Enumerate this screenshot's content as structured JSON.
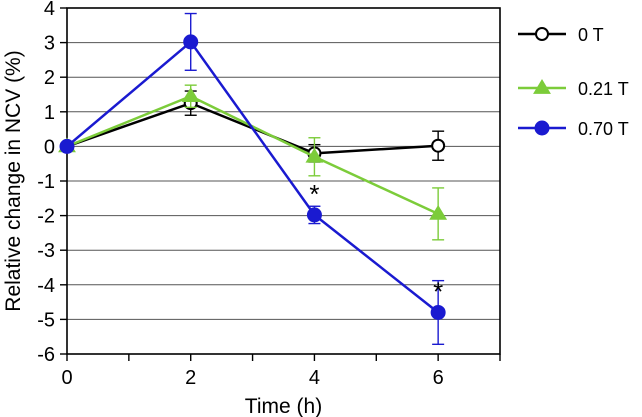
{
  "chart_data": {
    "type": "line",
    "title": "",
    "xlabel": "Time (h)",
    "ylabel": "Relative change in NCV (%)",
    "xlim": [
      0,
      7
    ],
    "ylim": [
      -6,
      4
    ],
    "x_ticks": [
      0,
      2,
      4,
      6
    ],
    "x_tick_labels": [
      "0",
      "2",
      "4",
      "6"
    ],
    "y_ticks": [
      4,
      3,
      2,
      1,
      0,
      -1,
      -2,
      -3,
      -4,
      -5,
      -6
    ],
    "y_tick_labels": [
      "4",
      "3",
      "2",
      "1",
      "0",
      "-1",
      "-2",
      "-3",
      "-4",
      "-5",
      "-6"
    ],
    "grid": "horizontal",
    "legend_position": "right",
    "x": [
      0,
      2,
      4,
      6
    ],
    "series": [
      {
        "name": "0 T",
        "color": "#000000",
        "marker": "open-circle",
        "values": [
          0,
          1.25,
          -0.2,
          0.02
        ],
        "errors": [
          0,
          0.35,
          0.25,
          0.42
        ]
      },
      {
        "name": "0.21 T",
        "color": "#7ccc3a",
        "marker": "triangle",
        "values": [
          0,
          1.45,
          -0.3,
          -1.95
        ],
        "errors": [
          0,
          0.32,
          0.55,
          0.75
        ]
      },
      {
        "name": "0.70 T",
        "color": "#1a1ad0",
        "marker": "filled-circle",
        "values": [
          0,
          3.02,
          -1.98,
          -4.8
        ],
        "errors": [
          0,
          0.82,
          0.25,
          0.92
        ]
      }
    ],
    "annotations": [
      {
        "text": "*",
        "x": 4,
        "y": -1.98
      },
      {
        "text": "*",
        "x": 6,
        "y": -4.8
      }
    ]
  }
}
